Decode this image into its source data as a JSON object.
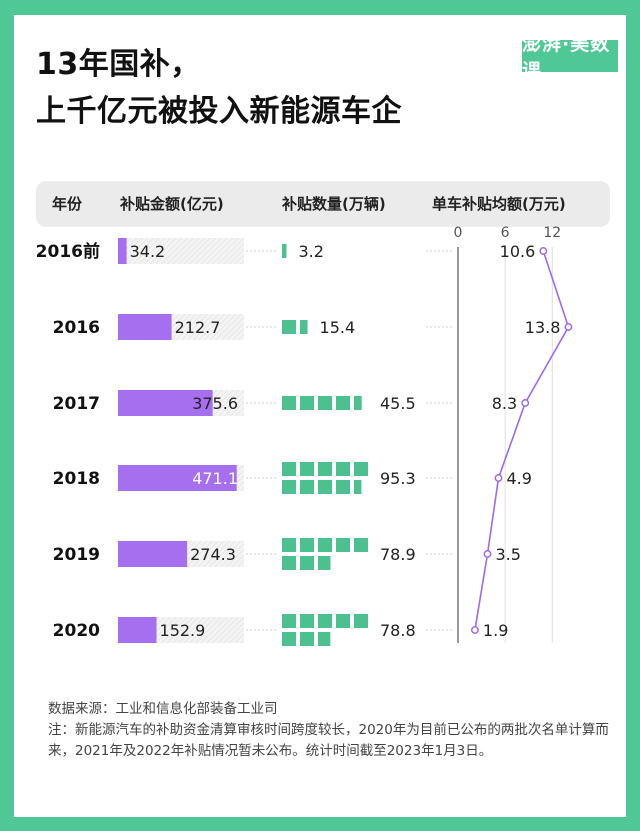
{
  "title_line1": "13年国补，",
  "title_line2": "上千亿元被投入新能源车企",
  "logo_text": "澎湃·美数课",
  "colors": {
    "purple": "#a66ff0",
    "green": "#4cc18f",
    "frame": "#4fc896",
    "line": "#9b6bea"
  },
  "headers": {
    "year": "年份",
    "subsidy": "补贴金额(亿元)",
    "quantity": "补贴数量(万辆)",
    "per_car": "单车补贴均额(万元)"
  },
  "chart_data": {
    "type": "table",
    "years": [
      "2016前",
      "2016",
      "2017",
      "2018",
      "2019",
      "2020"
    ],
    "subsidy_amount": {
      "name": "补贴金额(亿元)",
      "values": [
        34.2,
        212.7,
        375.6,
        471.1,
        274.3,
        152.9
      ],
      "labels": [
        "34.2",
        "212.7",
        "375.6",
        "471.1",
        "274.3",
        "152.9"
      ],
      "max": 500
    },
    "subsidy_quantity": {
      "name": "补贴数量(万辆)",
      "values": [
        3.2,
        15.4,
        45.5,
        95.3,
        78.9,
        78.8
      ],
      "labels": [
        "3.2",
        "15.4",
        "45.5",
        "95.3",
        "78.9",
        "78.8"
      ],
      "unit_per_square": 10
    },
    "per_car_subsidy": {
      "type": "line",
      "name": "单车补贴均额(万元)",
      "values": [
        10.6,
        13.8,
        8.3,
        4.9,
        3.5,
        1.9
      ],
      "labels": [
        "10.6",
        "13.8",
        "8.3",
        "4.9",
        "3.5",
        "1.9"
      ],
      "ticks": [
        "0",
        "6",
        "12"
      ],
      "tick_values": [
        0,
        6,
        12
      ],
      "xlim": [
        0,
        14
      ]
    }
  },
  "footer": {
    "source": "数据来源：工业和信息化部装备工业司",
    "note": "注：新能源汽车的补助资金清算审核时间跨度较长，2020年为目前已公布的两批次名单计算而来，2021年及2022年补贴情况暂未公布。统计时间截至2023年1月3日。"
  }
}
